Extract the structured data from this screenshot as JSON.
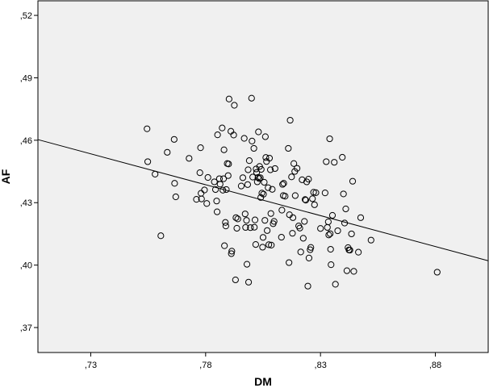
{
  "chart_data": {
    "type": "scatter",
    "xlabel": "DM",
    "ylabel": "AF",
    "xlim": [
      0.707,
      0.903
    ],
    "ylim": [
      0.358,
      0.527
    ],
    "x_ticks": [
      0.73,
      0.78,
      0.83,
      0.88
    ],
    "x_tick_labels": [
      ",73",
      ",78",
      ",83",
      ",88"
    ],
    "y_ticks": [
      0.37,
      0.4,
      0.43,
      0.46,
      0.49,
      0.52
    ],
    "y_tick_labels": [
      ",37",
      ",40",
      ",43",
      ",46",
      ",49",
      ",52"
    ],
    "grid": false,
    "plot_background": "#f0f0f0",
    "marker": "open-circle",
    "fit_line": {
      "type": "linear",
      "x": [
        0.707,
        0.903
      ],
      "y": [
        0.4603,
        0.4021
      ]
    },
    "points": [
      [
        0.7545,
        0.4655
      ],
      [
        0.7548,
        0.4497
      ],
      [
        0.758,
        0.4437
      ],
      [
        0.7605,
        0.4141
      ],
      [
        0.7633,
        0.4542
      ],
      [
        0.7663,
        0.4604
      ],
      [
        0.7665,
        0.4393
      ],
      [
        0.767,
        0.4328
      ],
      [
        0.7728,
        0.4513
      ],
      [
        0.776,
        0.4316
      ],
      [
        0.7775,
        0.4444
      ],
      [
        0.7778,
        0.4564
      ],
      [
        0.778,
        0.4345
      ],
      [
        0.7782,
        0.4318
      ],
      [
        0.7795,
        0.4361
      ],
      [
        0.7805,
        0.4296
      ],
      [
        0.781,
        0.4421
      ],
      [
        0.7838,
        0.44
      ],
      [
        0.7843,
        0.4363
      ],
      [
        0.7848,
        0.4308
      ],
      [
        0.785,
        0.4256
      ],
      [
        0.7852,
        0.4626
      ],
      [
        0.786,
        0.4415
      ],
      [
        0.7863,
        0.4389
      ],
      [
        0.7872,
        0.4659
      ],
      [
        0.7875,
        0.436
      ],
      [
        0.7878,
        0.4415
      ],
      [
        0.788,
        0.4554
      ],
      [
        0.7882,
        0.4093
      ],
      [
        0.7886,
        0.4205
      ],
      [
        0.7888,
        0.4188
      ],
      [
        0.789,
        0.4363
      ],
      [
        0.7894,
        0.4488
      ],
      [
        0.7898,
        0.443
      ],
      [
        0.79,
        0.4486
      ],
      [
        0.7902,
        0.4798
      ],
      [
        0.791,
        0.4643
      ],
      [
        0.7912,
        0.4055
      ],
      [
        0.7914,
        0.4067
      ],
      [
        0.7922,
        0.4625
      ],
      [
        0.7925,
        0.4768
      ],
      [
        0.793,
        0.3929
      ],
      [
        0.7932,
        0.4228
      ],
      [
        0.7936,
        0.4177
      ],
      [
        0.794,
        0.4222
      ],
      [
        0.7955,
        0.438
      ],
      [
        0.7962,
        0.442
      ],
      [
        0.7968,
        0.4609
      ],
      [
        0.7972,
        0.4246
      ],
      [
        0.7974,
        0.4181
      ],
      [
        0.7978,
        0.4215
      ],
      [
        0.798,
        0.4004
      ],
      [
        0.7983,
        0.4387
      ],
      [
        0.7985,
        0.4458
      ],
      [
        0.7987,
        0.3918
      ],
      [
        0.799,
        0.4502
      ],
      [
        0.7995,
        0.418
      ],
      [
        0.8,
        0.4802
      ],
      [
        0.8002,
        0.4596
      ],
      [
        0.8005,
        0.4423
      ],
      [
        0.801,
        0.4561
      ],
      [
        0.8012,
        0.4182
      ],
      [
        0.8015,
        0.4217
      ],
      [
        0.8018,
        0.4099
      ],
      [
        0.802,
        0.4462
      ],
      [
        0.8022,
        0.4445
      ],
      [
        0.8025,
        0.44
      ],
      [
        0.8028,
        0.4421
      ],
      [
        0.803,
        0.464
      ],
      [
        0.8033,
        0.4416
      ],
      [
        0.8035,
        0.4474
      ],
      [
        0.8038,
        0.442
      ],
      [
        0.804,
        0.4325
      ],
      [
        0.8042,
        0.446
      ],
      [
        0.8045,
        0.4346
      ],
      [
        0.8048,
        0.4086
      ],
      [
        0.805,
        0.4133
      ],
      [
        0.8052,
        0.4341
      ],
      [
        0.8055,
        0.4398
      ],
      [
        0.8058,
        0.4215
      ],
      [
        0.806,
        0.4617
      ],
      [
        0.8062,
        0.4517
      ],
      [
        0.8065,
        0.4498
      ],
      [
        0.8068,
        0.4166
      ],
      [
        0.8072,
        0.4372
      ],
      [
        0.8075,
        0.4098
      ],
      [
        0.8078,
        0.4514
      ],
      [
        0.8082,
        0.4458
      ],
      [
        0.8084,
        0.4248
      ],
      [
        0.8086,
        0.4096
      ],
      [
        0.809,
        0.4364
      ],
      [
        0.8094,
        0.4199
      ],
      [
        0.8098,
        0.421
      ],
      [
        0.8102,
        0.4464
      ],
      [
        0.813,
        0.4134
      ],
      [
        0.8132,
        0.4264
      ],
      [
        0.8135,
        0.4388
      ],
      [
        0.8138,
        0.4334
      ],
      [
        0.814,
        0.4393
      ],
      [
        0.8146,
        0.4331
      ],
      [
        0.816,
        0.4561
      ],
      [
        0.8163,
        0.4012
      ],
      [
        0.8165,
        0.4242
      ],
      [
        0.8168,
        0.4696
      ],
      [
        0.8174,
        0.4424
      ],
      [
        0.8178,
        0.4153
      ],
      [
        0.818,
        0.4228
      ],
      [
        0.8184,
        0.4488
      ],
      [
        0.8188,
        0.445
      ],
      [
        0.819,
        0.4334
      ],
      [
        0.8198,
        0.4465
      ],
      [
        0.8205,
        0.4188
      ],
      [
        0.821,
        0.4178
      ],
      [
        0.8214,
        0.4063
      ],
      [
        0.822,
        0.441
      ],
      [
        0.8225,
        0.4129
      ],
      [
        0.823,
        0.421
      ],
      [
        0.8233,
        0.4315
      ],
      [
        0.8236,
        0.4312
      ],
      [
        0.824,
        0.44
      ],
      [
        0.8245,
        0.3899
      ],
      [
        0.8248,
        0.4413
      ],
      [
        0.825,
        0.4034
      ],
      [
        0.8255,
        0.4074
      ],
      [
        0.8258,
        0.4085
      ],
      [
        0.8265,
        0.4319
      ],
      [
        0.827,
        0.435
      ],
      [
        0.8274,
        0.429
      ],
      [
        0.828,
        0.4348
      ],
      [
        0.83,
        0.4176
      ],
      [
        0.832,
        0.4347
      ],
      [
        0.8325,
        0.4497
      ],
      [
        0.833,
        0.4181
      ],
      [
        0.8334,
        0.4208
      ],
      [
        0.8336,
        0.4145
      ],
      [
        0.834,
        0.4607
      ],
      [
        0.8342,
        0.4151
      ],
      [
        0.8344,
        0.4076
      ],
      [
        0.8346,
        0.4002
      ],
      [
        0.8352,
        0.4239
      ],
      [
        0.836,
        0.4494
      ],
      [
        0.8365,
        0.3908
      ],
      [
        0.8375,
        0.4165
      ],
      [
        0.8395,
        0.4518
      ],
      [
        0.84,
        0.4342
      ],
      [
        0.8405,
        0.4202
      ],
      [
        0.841,
        0.427
      ],
      [
        0.8415,
        0.3973
      ],
      [
        0.842,
        0.4084
      ],
      [
        0.8424,
        0.4073
      ],
      [
        0.8428,
        0.4072
      ],
      [
        0.8435,
        0.415
      ],
      [
        0.844,
        0.4403
      ],
      [
        0.8445,
        0.397
      ],
      [
        0.8465,
        0.4062
      ],
      [
        0.8475,
        0.4228
      ],
      [
        0.852,
        0.412
      ],
      [
        0.8808,
        0.3966
      ]
    ]
  }
}
